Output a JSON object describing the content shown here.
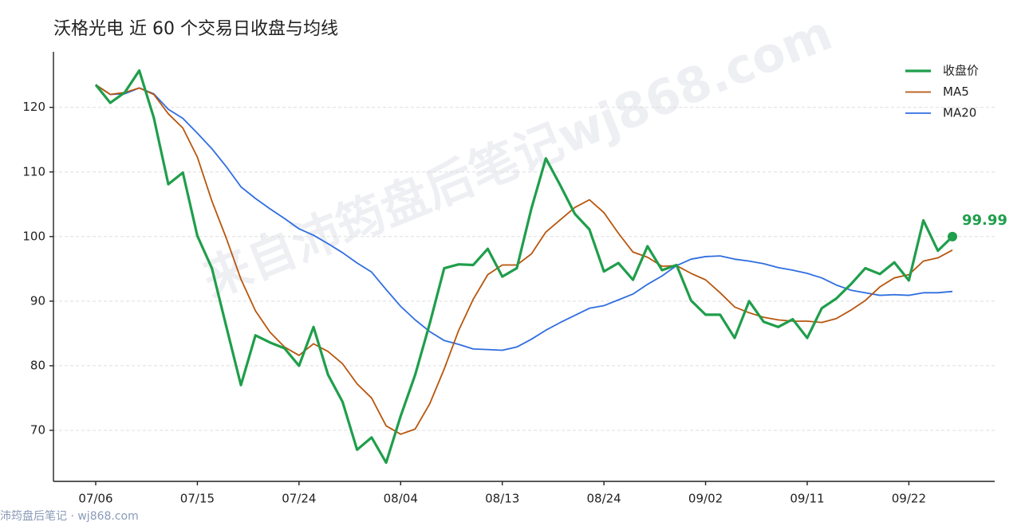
{
  "chart_data": {
    "type": "line",
    "title": "沃格光电 近 60 个交易日收盘与均线",
    "watermark": "来自沛筠盘后笔记wj868.com",
    "footer": "沛筠盘后笔记 · wj868.com",
    "categories": [
      "07/06",
      null,
      null,
      null,
      null,
      null,
      null,
      "07/15",
      null,
      null,
      null,
      null,
      null,
      null,
      "07/24",
      null,
      null,
      null,
      null,
      null,
      null,
      "08/04",
      null,
      null,
      null,
      null,
      null,
      null,
      "08/13",
      null,
      null,
      null,
      null,
      null,
      null,
      "08/24",
      null,
      null,
      null,
      null,
      null,
      null,
      "09/02",
      null,
      null,
      null,
      null,
      null,
      null,
      "09/11",
      null,
      null,
      null,
      null,
      null,
      null,
      "09/22",
      null,
      null,
      null
    ],
    "series": [
      {
        "name": "收盘价",
        "color": "#1f9e4b",
        "width": 3.2,
        "values": [
          123.5,
          120.7,
          122.3,
          125.7,
          118.4,
          108.1,
          109.9,
          100.1,
          95.1,
          86.0,
          77.0,
          84.7,
          83.6,
          82.7,
          80.0,
          86.0,
          78.6,
          74.4,
          67.0,
          68.9,
          65.0,
          72.2,
          78.6,
          86.5,
          95.1,
          95.7,
          95.6,
          98.1,
          93.8,
          95.1,
          104.3,
          112.1,
          107.9,
          103.5,
          101.1,
          94.6,
          95.9,
          93.3,
          98.5,
          94.8,
          95.6,
          90.1,
          87.9,
          87.9,
          84.3,
          90.0,
          86.8,
          86.0,
          87.2,
          84.3,
          88.9,
          90.4,
          92.6,
          95.1,
          94.2,
          96.0,
          93.2,
          102.5,
          97.8,
          99.99
        ]
      },
      {
        "name": "MA5",
        "color": "#b8560e",
        "width": 1.8,
        "values": [
          123.5,
          122.0,
          122.3,
          123.0,
          122.0,
          119.0,
          116.8,
          112.3,
          105.5,
          99.7,
          93.4,
          88.5,
          85.2,
          82.9,
          81.6,
          83.4,
          82.2,
          80.3,
          77.2,
          75.0,
          70.7,
          69.4,
          70.2,
          74.1,
          79.5,
          85.5,
          90.3,
          94.1,
          95.6,
          95.6,
          97.3,
          100.7,
          102.6,
          104.5,
          105.7,
          103.7,
          100.5,
          97.6,
          96.8,
          95.4,
          95.5,
          94.3,
          93.3,
          91.3,
          89.1,
          88.2,
          87.5,
          87.1,
          86.9,
          86.9,
          86.7,
          87.3,
          88.6,
          90.1,
          92.2,
          93.6,
          94.1,
          96.2,
          96.7,
          97.9
        ]
      },
      {
        "name": "MA20",
        "color": "#2f6ee0",
        "width": 1.8,
        "values": [
          123.5,
          122.0,
          122.1,
          123.0,
          122.1,
          119.7,
          118.3,
          116.0,
          113.6,
          110.8,
          107.7,
          105.9,
          104.3,
          102.8,
          101.2,
          100.2,
          98.9,
          97.5,
          95.9,
          94.5,
          91.8,
          89.2,
          87.1,
          85.3,
          83.9,
          83.3,
          82.6,
          82.5,
          82.4,
          82.9,
          84.1,
          85.5,
          86.7,
          87.8,
          88.9,
          89.3,
          90.2,
          91.1,
          92.6,
          93.9,
          95.5,
          96.5,
          96.9,
          97.0,
          96.5,
          96.2,
          95.8,
          95.2,
          94.8,
          94.3,
          93.6,
          92.5,
          91.7,
          91.3,
          90.9,
          91.0,
          90.9,
          91.3,
          91.3,
          91.5
        ]
      }
    ],
    "ylim": [
      62.1,
      128.6
    ],
    "yticks": [
      70,
      80,
      90,
      100,
      110,
      120
    ],
    "grid": true,
    "legend": "upper-right"
  }
}
